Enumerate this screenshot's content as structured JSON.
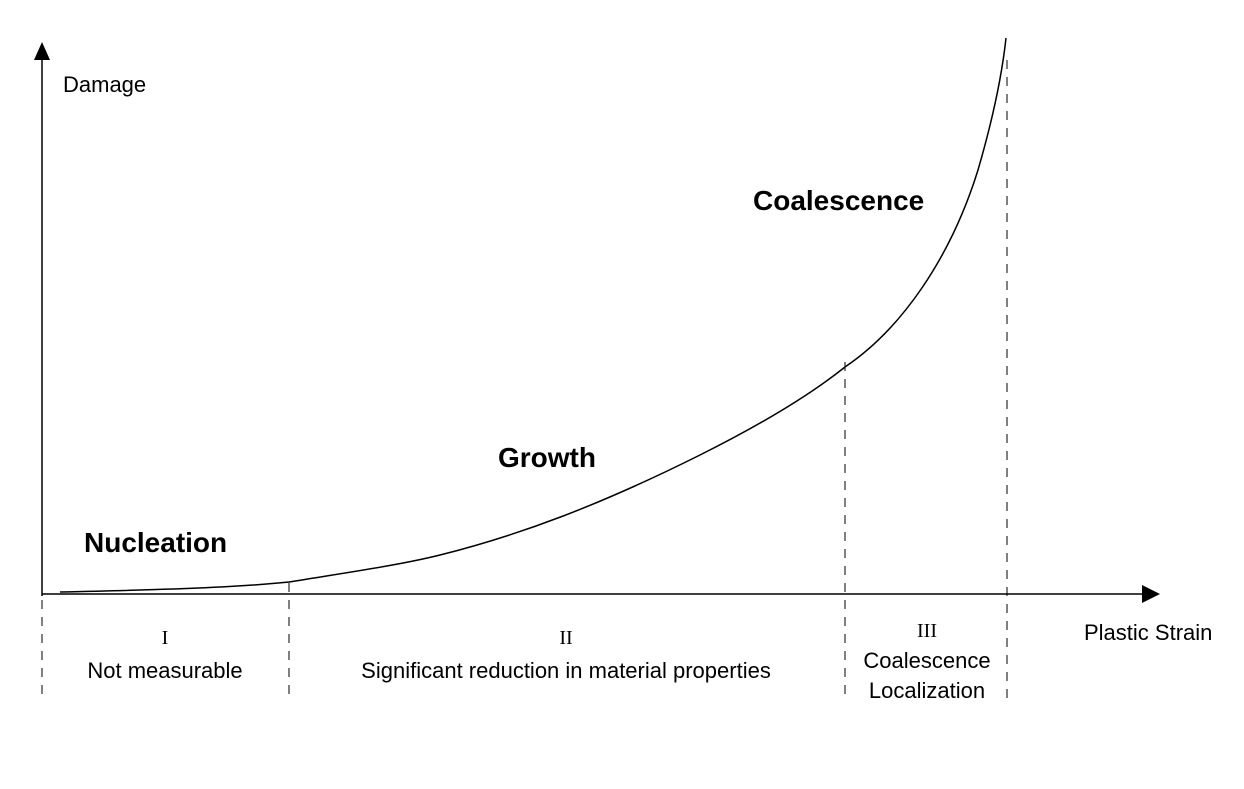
{
  "axes": {
    "y_label": "Damage",
    "x_label": "Plastic Strain"
  },
  "phases": [
    {
      "name": "Nucleation"
    },
    {
      "name": "Growth"
    },
    {
      "name": "Coalescence"
    }
  ],
  "stages": [
    {
      "numeral": "I",
      "description": "Not measurable"
    },
    {
      "numeral": "II",
      "description": "Significant reduction in material properties"
    },
    {
      "numeral": "III",
      "description_lines": [
        "Coalescence",
        "Localization"
      ]
    }
  ],
  "colors": {
    "line": "#000000",
    "background": "#ffffff"
  }
}
